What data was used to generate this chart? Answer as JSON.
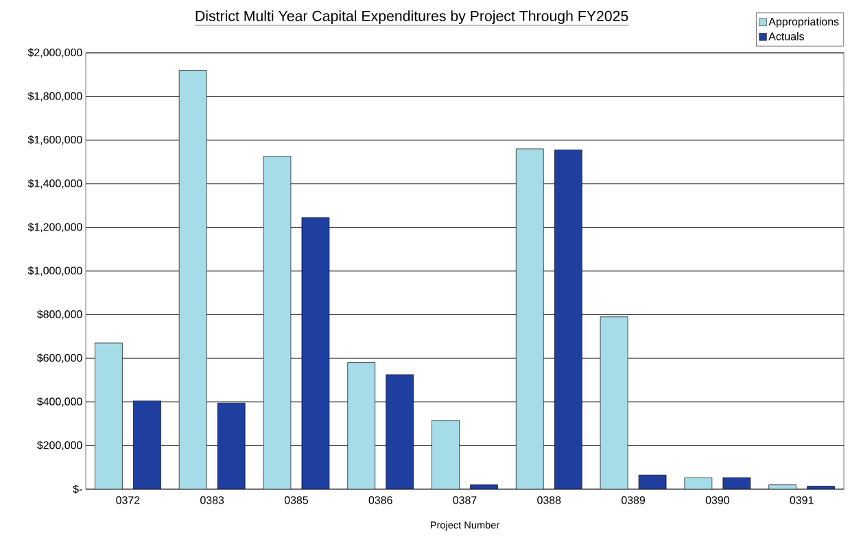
{
  "chart_data": {
    "type": "bar",
    "title": "District Multi Year Capital Expenditures by Project Through FY2025",
    "xlabel": "Project Number",
    "categories": [
      "0372",
      "0383",
      "0385",
      "0386",
      "0387",
      "0388",
      "0389",
      "0390",
      "0391"
    ],
    "series": [
      {
        "name": "Appropriations",
        "color": "#a6dbe8",
        "values": [
          670000,
          1920000,
          1525000,
          580000,
          315000,
          1560000,
          790000,
          52000,
          20000
        ]
      },
      {
        "name": "Actuals",
        "color": "#1f3fa0",
        "values": [
          405000,
          395000,
          1245000,
          525000,
          20000,
          1555000,
          65000,
          53000,
          14000
        ]
      }
    ],
    "ylim": [
      0,
      2000000
    ],
    "yticks": [
      {
        "value": 0,
        "label": "$-"
      },
      {
        "value": 200000,
        "label": "$200,000"
      },
      {
        "value": 400000,
        "label": "$400,000"
      },
      {
        "value": 600000,
        "label": "$600,000"
      },
      {
        "value": 800000,
        "label": "$800,000"
      },
      {
        "value": 1000000,
        "label": "$1,000,000"
      },
      {
        "value": 1200000,
        "label": "$1,200,000"
      },
      {
        "value": 1400000,
        "label": "$1,400,000"
      },
      {
        "value": 1600000,
        "label": "$1,600,000"
      },
      {
        "value": 1800000,
        "label": "$1,800,000"
      },
      {
        "value": 2000000,
        "label": "$2,000,000"
      }
    ],
    "grid": "y",
    "legend": "top right"
  }
}
